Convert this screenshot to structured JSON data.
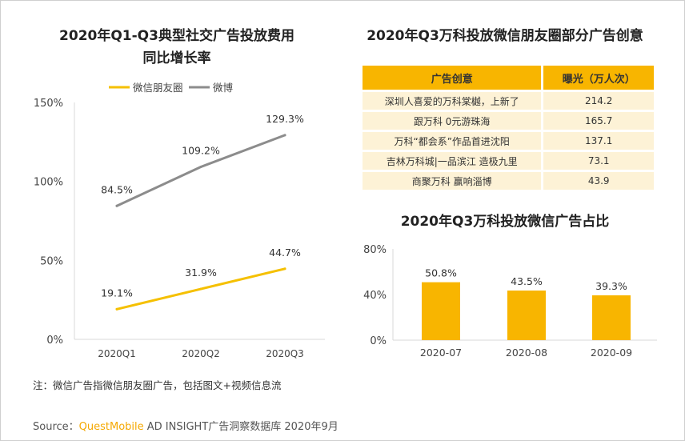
{
  "chart_data": [
    {
      "type": "line",
      "title": "2020年Q1-Q3典型社交广告投放费用同比增长率",
      "categories": [
        "2020Q1",
        "2020Q2",
        "2020Q3"
      ],
      "series": [
        {
          "name": "微信朋友圈",
          "values": [
            19.1,
            31.9,
            44.7
          ],
          "labels": [
            "19.1%",
            "31.9%",
            "44.7%"
          ],
          "color": "#f5c000"
        },
        {
          "name": "微博",
          "values": [
            84.5,
            109.2,
            129.3
          ],
          "labels": [
            "84.5%",
            "109.2%",
            "129.3%"
          ],
          "color": "#8c8c8c"
        }
      ],
      "ylim": [
        0,
        150
      ],
      "yticks": [
        0,
        50,
        100,
        150
      ],
      "ytick_labels": [
        "0%",
        "50%",
        "100%",
        "150%"
      ],
      "legend": "top",
      "grid": false
    },
    {
      "type": "table",
      "title": "2020年Q3万科投放微信朋友圈部分广告创意",
      "columns": [
        "广告创意",
        "曝光（万人次）"
      ],
      "rows": [
        [
          "深圳人喜爱的万科棠樾，上新了",
          "214.2"
        ],
        [
          "跟万科 0元游珠海",
          "165.7"
        ],
        [
          "万科“都会系”作品首进沈阳",
          "137.1"
        ],
        [
          "吉林万科城|一品滨江 造极九里",
          "73.1"
        ],
        [
          "商聚万科 赢响淄博",
          "43.9"
        ]
      ],
      "header_color": "#f8b500",
      "row_color": "#fdf2d6"
    },
    {
      "type": "bar",
      "title": "2020年Q3万科投放微信广告占比",
      "categories": [
        "2020-07",
        "2020-08",
        "2020-09"
      ],
      "values": [
        50.8,
        43.5,
        39.3
      ],
      "labels": [
        "50.8%",
        "43.5%",
        "39.3%"
      ],
      "ylim": [
        0,
        80
      ],
      "yticks": [
        0,
        40,
        80
      ],
      "ytick_labels": [
        "0%",
        "40%",
        "80%"
      ],
      "color": "#f8b500",
      "grid": false
    }
  ],
  "footer": {
    "note": "注：微信广告指微信朋友圈广告，包括图文+视频信息流",
    "source_prefix": "Source：",
    "source_brand": "QuestMobile",
    "source_rest": " AD INSIGHT广告洞察数据库 2020年9月"
  }
}
